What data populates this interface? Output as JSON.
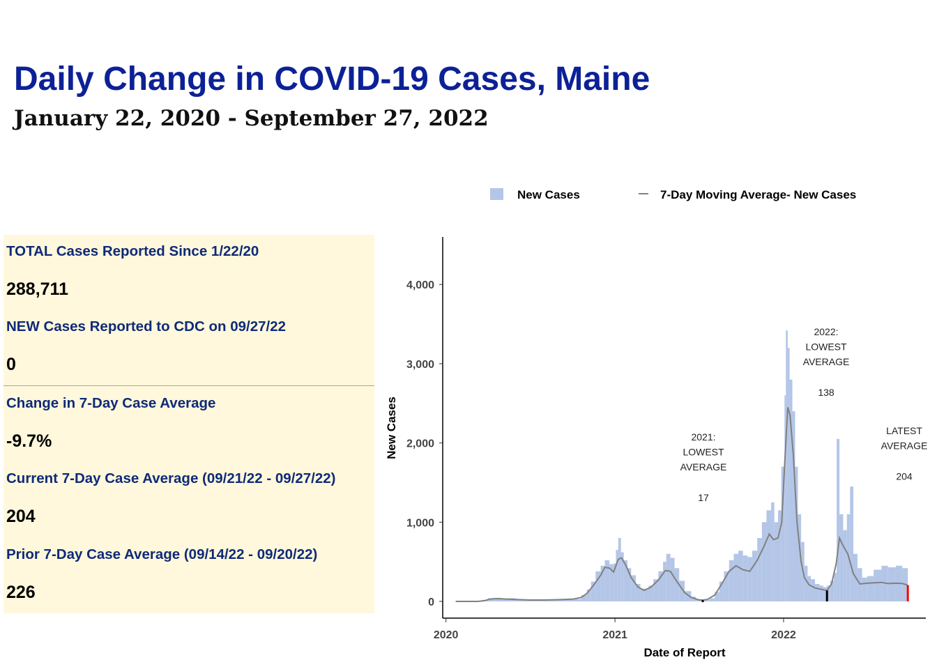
{
  "header": {
    "title": "Daily Change in COVID-19 Cases, Maine",
    "subtitle": "January 22, 2020 - September 27, 2022"
  },
  "stats": {
    "total_label": "TOTAL Cases Reported Since 1/22/20",
    "total_value": "288,711",
    "new_label": "NEW Cases Reported to CDC on 09/27/22",
    "new_value": "0",
    "change_label": "Change in 7-Day Case Average",
    "change_value": "-9.7%",
    "current_label": "Current 7-Day Case Average (09/21/22 - 09/27/22)",
    "current_value": "204",
    "prior_label": "Prior 7-Day Case Average (09/14/22 - 09/20/22)",
    "prior_value": "226"
  },
  "colors": {
    "title": "#0d2196",
    "panel_background": "#fff8dc",
    "label_text": "#0f2a78",
    "bars": "#b4c6e7",
    "moving_average": "#808080",
    "latest_marker": "#ff0000",
    "lowest_marker": "#000000"
  },
  "chart_data": {
    "type": "bar",
    "title": "",
    "xlabel": "Date of Report",
    "ylabel": "New Cases",
    "x_ticks": [
      "2020",
      "2021",
      "2022"
    ],
    "y_ticks": [
      "0",
      "1,000",
      "2,000",
      "3,000",
      "4,000"
    ],
    "ylim": [
      0,
      4600
    ],
    "xlim": [
      "2019-12-25",
      "2022-11-05"
    ],
    "legend": {
      "position": "top",
      "entries": [
        "New Cases",
        "7-Day Moving Average- New Cases"
      ]
    },
    "series": [
      {
        "name": "New Cases",
        "type": "bar",
        "points": [
          [
            "2020-01-22",
            0
          ],
          [
            "2020-02-15",
            0
          ],
          [
            "2020-03-10",
            3
          ],
          [
            "2020-03-20",
            20
          ],
          [
            "2020-04-01",
            40
          ],
          [
            "2020-04-15",
            45
          ],
          [
            "2020-05-01",
            35
          ],
          [
            "2020-05-15",
            40
          ],
          [
            "2020-06-01",
            30
          ],
          [
            "2020-06-15",
            25
          ],
          [
            "2020-07-01",
            20
          ],
          [
            "2020-08-01",
            20
          ],
          [
            "2020-09-01",
            25
          ],
          [
            "2020-10-01",
            30
          ],
          [
            "2020-10-20",
            80
          ],
          [
            "2020-11-01",
            150
          ],
          [
            "2020-11-10",
            250
          ],
          [
            "2020-11-20",
            380
          ],
          [
            "2020-12-01",
            450
          ],
          [
            "2020-12-10",
            520
          ],
          [
            "2020-12-20",
            470
          ],
          [
            "2020-12-29",
            480
          ],
          [
            "2021-01-03",
            650
          ],
          [
            "2021-01-08",
            800
          ],
          [
            "2021-01-14",
            620
          ],
          [
            "2021-01-20",
            520
          ],
          [
            "2021-01-28",
            420
          ],
          [
            "2021-02-05",
            330
          ],
          [
            "2021-02-15",
            220
          ],
          [
            "2021-02-25",
            160
          ],
          [
            "2021-03-05",
            160
          ],
          [
            "2021-03-15",
            200
          ],
          [
            "2021-03-25",
            280
          ],
          [
            "2021-04-05",
            380
          ],
          [
            "2021-04-15",
            500
          ],
          [
            "2021-04-22",
            600
          ],
          [
            "2021-05-01",
            550
          ],
          [
            "2021-05-10",
            420
          ],
          [
            "2021-05-20",
            260
          ],
          [
            "2021-06-01",
            130
          ],
          [
            "2021-06-15",
            60
          ],
          [
            "2021-06-25",
            30
          ],
          [
            "2021-07-05",
            18
          ],
          [
            "2021-07-15",
            20
          ],
          [
            "2021-07-25",
            40
          ],
          [
            "2021-08-05",
            120
          ],
          [
            "2021-08-15",
            250
          ],
          [
            "2021-08-25",
            380
          ],
          [
            "2021-09-05",
            520
          ],
          [
            "2021-09-15",
            600
          ],
          [
            "2021-09-25",
            640
          ],
          [
            "2021-10-05",
            580
          ],
          [
            "2021-10-15",
            560
          ],
          [
            "2021-10-25",
            640
          ],
          [
            "2021-11-05",
            800
          ],
          [
            "2021-11-15",
            1000
          ],
          [
            "2021-11-25",
            1150
          ],
          [
            "2021-12-05",
            1250
          ],
          [
            "2021-12-12",
            1000
          ],
          [
            "2021-12-20",
            1150
          ],
          [
            "2021-12-27",
            1700
          ],
          [
            "2022-01-03",
            2600
          ],
          [
            "2022-01-06",
            3420
          ],
          [
            "2022-01-10",
            3200
          ],
          [
            "2022-01-14",
            2800
          ],
          [
            "2022-01-20",
            2400
          ],
          [
            "2022-01-26",
            1700
          ],
          [
            "2022-02-01",
            1100
          ],
          [
            "2022-02-08",
            750
          ],
          [
            "2022-02-15",
            450
          ],
          [
            "2022-02-22",
            320
          ],
          [
            "2022-03-01",
            280
          ],
          [
            "2022-03-10",
            220
          ],
          [
            "2022-03-20",
            200
          ],
          [
            "2022-03-28",
            180
          ],
          [
            "2022-04-05",
            200
          ],
          [
            "2022-04-12",
            260
          ],
          [
            "2022-04-20",
            360
          ],
          [
            "2022-04-26",
            2050
          ],
          [
            "2022-05-02",
            1100
          ],
          [
            "2022-05-10",
            900
          ],
          [
            "2022-05-18",
            1100
          ],
          [
            "2022-05-25",
            1450
          ],
          [
            "2022-06-01",
            600
          ],
          [
            "2022-06-10",
            420
          ],
          [
            "2022-06-20",
            300
          ],
          [
            "2022-07-01",
            320
          ],
          [
            "2022-07-15",
            400
          ],
          [
            "2022-08-01",
            450
          ],
          [
            "2022-08-15",
            430
          ],
          [
            "2022-09-01",
            450
          ],
          [
            "2022-09-15",
            420
          ],
          [
            "2022-09-27",
            0
          ]
        ]
      },
      {
        "name": "7-Day Moving Average- New Cases",
        "type": "line",
        "points": [
          [
            "2020-01-22",
            0
          ],
          [
            "2020-03-10",
            0
          ],
          [
            "2020-03-25",
            10
          ],
          [
            "2020-04-05",
            30
          ],
          [
            "2020-04-20",
            35
          ],
          [
            "2020-05-10",
            30
          ],
          [
            "2020-06-01",
            25
          ],
          [
            "2020-07-01",
            18
          ],
          [
            "2020-08-01",
            18
          ],
          [
            "2020-09-01",
            22
          ],
          [
            "2020-10-01",
            28
          ],
          [
            "2020-10-20",
            50
          ],
          [
            "2020-11-01",
            100
          ],
          [
            "2020-11-15",
            200
          ],
          [
            "2020-12-01",
            330
          ],
          [
            "2020-12-10",
            430
          ],
          [
            "2020-12-20",
            420
          ],
          [
            "2020-12-29",
            370
          ],
          [
            "2021-01-08",
            530
          ],
          [
            "2021-01-15",
            550
          ],
          [
            "2021-01-25",
            450
          ],
          [
            "2021-02-05",
            300
          ],
          [
            "2021-02-20",
            180
          ],
          [
            "2021-03-05",
            140
          ],
          [
            "2021-03-20",
            180
          ],
          [
            "2021-04-05",
            270
          ],
          [
            "2021-04-20",
            390
          ],
          [
            "2021-05-01",
            380
          ],
          [
            "2021-05-15",
            250
          ],
          [
            "2021-06-01",
            110
          ],
          [
            "2021-06-15",
            50
          ],
          [
            "2021-07-01",
            20
          ],
          [
            "2021-07-10",
            17
          ],
          [
            "2021-07-20",
            25
          ],
          [
            "2021-08-05",
            80
          ],
          [
            "2021-08-20",
            220
          ],
          [
            "2021-09-05",
            380
          ],
          [
            "2021-09-20",
            450
          ],
          [
            "2021-10-05",
            400
          ],
          [
            "2021-10-20",
            380
          ],
          [
            "2021-11-05",
            520
          ],
          [
            "2021-11-20",
            700
          ],
          [
            "2021-12-01",
            850
          ],
          [
            "2021-12-10",
            780
          ],
          [
            "2021-12-20",
            800
          ],
          [
            "2021-12-28",
            1000
          ],
          [
            "2022-01-03",
            1700
          ],
          [
            "2022-01-10",
            2450
          ],
          [
            "2022-01-15",
            2350
          ],
          [
            "2022-01-22",
            1850
          ],
          [
            "2022-01-30",
            1000
          ],
          [
            "2022-02-08",
            500
          ],
          [
            "2022-02-15",
            300
          ],
          [
            "2022-02-25",
            210
          ],
          [
            "2022-03-10",
            170
          ],
          [
            "2022-03-25",
            150
          ],
          [
            "2022-04-05",
            138
          ],
          [
            "2022-04-15",
            220
          ],
          [
            "2022-04-25",
            480
          ],
          [
            "2022-05-02",
            800
          ],
          [
            "2022-05-10",
            700
          ],
          [
            "2022-05-20",
            600
          ],
          [
            "2022-06-01",
            350
          ],
          [
            "2022-06-15",
            220
          ],
          [
            "2022-07-01",
            230
          ],
          [
            "2022-08-01",
            240
          ],
          [
            "2022-08-15",
            225
          ],
          [
            "2022-09-01",
            230
          ],
          [
            "2022-09-15",
            226
          ],
          [
            "2022-09-27",
            204
          ]
        ]
      }
    ],
    "markers": [
      {
        "date": "2021-07-10",
        "value": 17,
        "color": "#000000"
      },
      {
        "date": "2022-04-05",
        "value": 138,
        "color": "#000000"
      },
      {
        "date": "2022-09-27",
        "value": 204,
        "color": "#ff0000"
      }
    ],
    "annotations": [
      {
        "lines": [
          "2021:",
          "LOWEST",
          "AVERAGE"
        ],
        "value": "17"
      },
      {
        "lines": [
          "2022:",
          "LOWEST",
          "AVERAGE"
        ],
        "value": "138"
      },
      {
        "lines": [
          "LATEST",
          "AVERAGE"
        ],
        "value": "204"
      }
    ]
  }
}
